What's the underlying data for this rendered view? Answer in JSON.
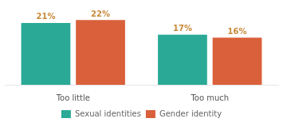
{
  "chart_data": {
    "type": "bar",
    "categories": [
      "Too little",
      "Too much"
    ],
    "series": [
      {
        "name": "Sexual identities",
        "color": "#2aaa96",
        "values": [
          21,
          17
        ],
        "value_labels": [
          "21%",
          "17%"
        ]
      },
      {
        "name": "Gender identity",
        "color": "#d9603a",
        "values": [
          22,
          16
        ],
        "value_labels": [
          "22%",
          "16%"
        ]
      }
    ],
    "ylim": [
      0,
      25
    ],
    "grid": false,
    "legend": "bottom",
    "data_labels": true,
    "tick_labels": "x"
  }
}
